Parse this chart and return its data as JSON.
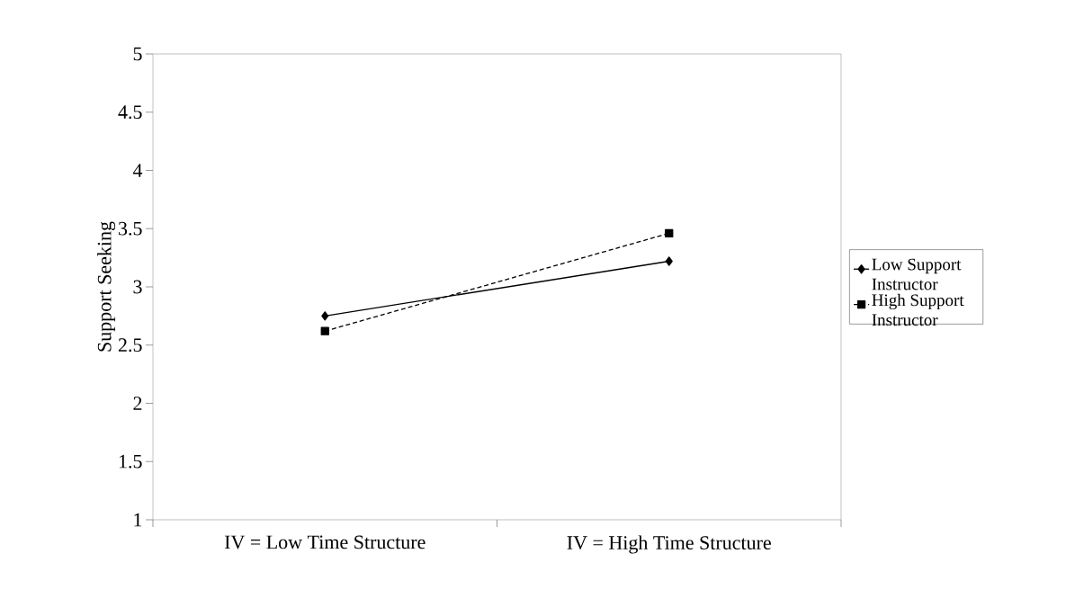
{
  "chart_data": {
    "type": "line",
    "ylabel": "Support Seeking",
    "categories": [
      "IV = Low Time Structure",
      "IV = High Time Structure"
    ],
    "series": [
      {
        "name": "Low Support Instructor",
        "color": "#000000",
        "values": [
          2.75,
          3.22
        ],
        "marker": "diamond",
        "line_style": "solid"
      },
      {
        "name": "High Support Instructor",
        "color": "#000000",
        "values": [
          2.62,
          3.46
        ],
        "marker": "square",
        "line_style": "dashed"
      }
    ],
    "ylim": [
      1,
      5
    ],
    "yticks": [
      1,
      1.5,
      2,
      2.5,
      3,
      3.5,
      4,
      4.5,
      5
    ],
    "grid": false,
    "legend": "right"
  }
}
